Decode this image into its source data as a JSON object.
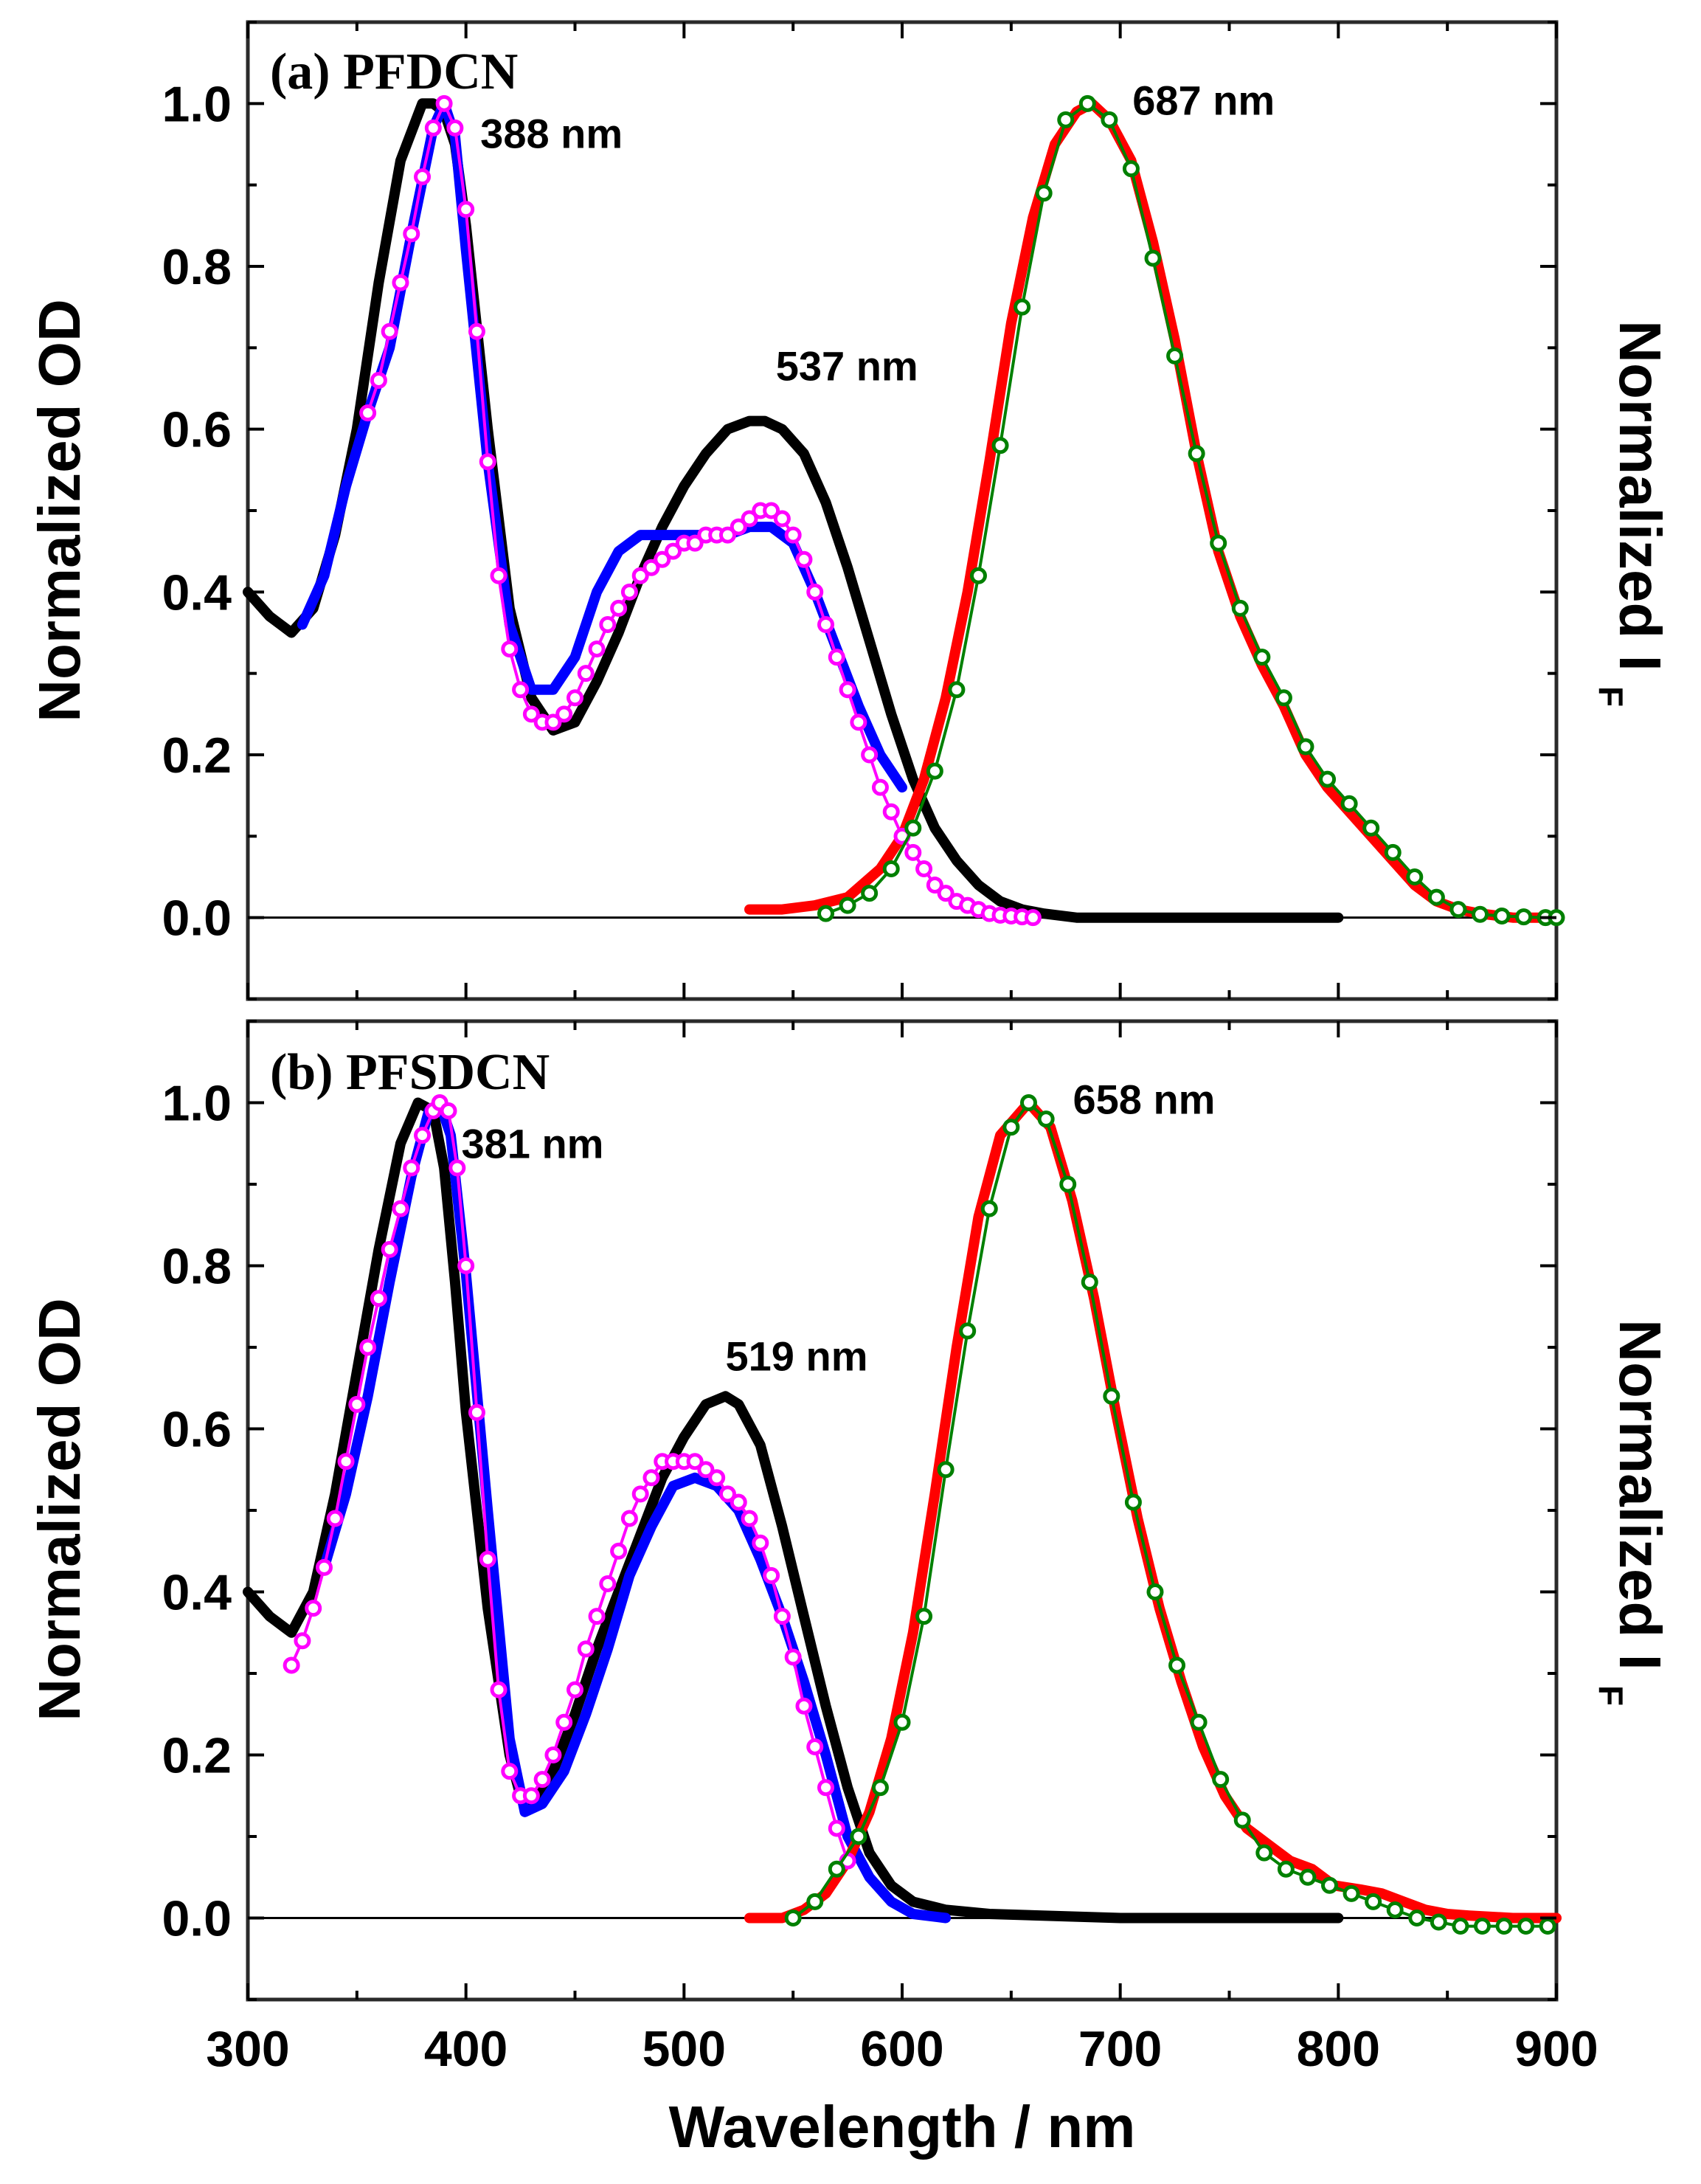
{
  "chart_data": {
    "type": "line",
    "x_axis": {
      "label": "Wavelength / nm",
      "range": [
        300,
        900
      ],
      "ticks": [
        300,
        400,
        500,
        600,
        700,
        800,
        900
      ]
    },
    "panels": [
      {
        "id": "a",
        "title": "(a) PFDCN",
        "ylabel_left": "Normalized OD",
        "ylabel_right": "Normalized I",
        "ylabel_right_sub": "F",
        "ylim": [
          -0.1,
          1.1
        ],
        "yticks": [
          "0.0",
          "0.2",
          "0.4",
          "0.6",
          "0.8",
          "1.0"
        ],
        "peak_labels": [
          {
            "text": "388 nm",
            "x": 388,
            "y": 1.0
          },
          {
            "text": "537 nm",
            "x": 537,
            "y": 0.61
          },
          {
            "text": "687 nm",
            "x": 687,
            "y": 1.0
          }
        ],
        "series": [
          {
            "name": "absorption-black",
            "color": "#000000",
            "style": "line",
            "x": [
              300,
              310,
              320,
              330,
              340,
              350,
              360,
              370,
              380,
              385,
              390,
              395,
              400,
              410,
              420,
              430,
              440,
              450,
              460,
              470,
              480,
              490,
              500,
              510,
              520,
              530,
              537,
              545,
              555,
              565,
              575,
              585,
              595,
              605,
              615,
              625,
              635,
              645,
              655,
              665,
              680,
              700,
              750,
              800
            ],
            "y": [
              0.4,
              0.37,
              0.35,
              0.38,
              0.47,
              0.6,
              0.78,
              0.93,
              1.0,
              1.0,
              0.99,
              0.95,
              0.85,
              0.6,
              0.38,
              0.27,
              0.23,
              0.24,
              0.29,
              0.35,
              0.42,
              0.48,
              0.53,
              0.57,
              0.6,
              0.61,
              0.61,
              0.6,
              0.57,
              0.51,
              0.43,
              0.34,
              0.25,
              0.17,
              0.11,
              0.07,
              0.04,
              0.02,
              0.01,
              0.005,
              0.0,
              0.0,
              0.0,
              0.0
            ]
          },
          {
            "name": "absorption-blue",
            "color": "#0000ff",
            "style": "line",
            "x": [
              325,
              335,
              345,
              355,
              365,
              375,
              385,
              390,
              395,
              400,
              410,
              420,
              430,
              440,
              450,
              460,
              470,
              480,
              490,
              500,
              510,
              520,
              530,
              540,
              550,
              560,
              570,
              580,
              590,
              600
            ],
            "y": [
              0.36,
              0.42,
              0.53,
              0.62,
              0.7,
              0.84,
              0.97,
              1.0,
              0.96,
              0.82,
              0.56,
              0.36,
              0.28,
              0.28,
              0.32,
              0.4,
              0.45,
              0.47,
              0.47,
              0.47,
              0.47,
              0.47,
              0.48,
              0.48,
              0.46,
              0.4,
              0.33,
              0.26,
              0.2,
              0.16
            ]
          },
          {
            "name": "absorption-magenta",
            "color": "#ff00ff",
            "style": "markers",
            "x": [
              355,
              360,
              365,
              370,
              375,
              380,
              385,
              390,
              395,
              400,
              405,
              410,
              415,
              420,
              425,
              430,
              435,
              440,
              445,
              450,
              455,
              460,
              465,
              470,
              475,
              480,
              485,
              490,
              495,
              500,
              505,
              510,
              515,
              520,
              525,
              530,
              535,
              540,
              545,
              550,
              555,
              560,
              565,
              570,
              575,
              580,
              585,
              590,
              595,
              600,
              605,
              610,
              615,
              620,
              625,
              630,
              635,
              640,
              645,
              650,
              655,
              660
            ],
            "y": [
              0.62,
              0.66,
              0.72,
              0.78,
              0.84,
              0.91,
              0.97,
              1.0,
              0.97,
              0.87,
              0.72,
              0.56,
              0.42,
              0.33,
              0.28,
              0.25,
              0.24,
              0.24,
              0.25,
              0.27,
              0.3,
              0.33,
              0.36,
              0.38,
              0.4,
              0.42,
              0.43,
              0.44,
              0.45,
              0.46,
              0.46,
              0.47,
              0.47,
              0.47,
              0.48,
              0.49,
              0.5,
              0.5,
              0.49,
              0.47,
              0.44,
              0.4,
              0.36,
              0.32,
              0.28,
              0.24,
              0.2,
              0.16,
              0.13,
              0.1,
              0.08,
              0.06,
              0.04,
              0.03,
              0.02,
              0.015,
              0.01,
              0.005,
              0.003,
              0.002,
              0.001,
              0.0
            ]
          },
          {
            "name": "emission-red",
            "color": "#ff0000",
            "style": "line",
            "x": [
              530,
              545,
              560,
              575,
              590,
              600,
              610,
              620,
              630,
              640,
              650,
              660,
              670,
              680,
              687,
              695,
              705,
              715,
              725,
              735,
              745,
              755,
              765,
              775,
              785,
              795,
              805,
              815,
              825,
              835,
              845,
              855,
              865,
              880,
              900
            ],
            "y": [
              0.01,
              0.01,
              0.015,
              0.025,
              0.06,
              0.1,
              0.17,
              0.27,
              0.4,
              0.56,
              0.73,
              0.86,
              0.95,
              0.99,
              1.0,
              0.98,
              0.93,
              0.83,
              0.71,
              0.57,
              0.45,
              0.37,
              0.31,
              0.26,
              0.2,
              0.16,
              0.13,
              0.1,
              0.07,
              0.04,
              0.02,
              0.01,
              0.005,
              0.0,
              0.0
            ]
          },
          {
            "name": "emission-green",
            "color": "#008000",
            "style": "markers",
            "x": [
              565,
              575,
              585,
              595,
              605,
              615,
              625,
              635,
              645,
              655,
              665,
              675,
              685,
              695,
              705,
              715,
              725,
              735,
              745,
              755,
              765,
              775,
              785,
              795,
              805,
              815,
              825,
              835,
              845,
              855,
              865,
              875,
              885,
              895,
              900
            ],
            "y": [
              0.005,
              0.015,
              0.03,
              0.06,
              0.11,
              0.18,
              0.28,
              0.42,
              0.58,
              0.75,
              0.89,
              0.98,
              1.0,
              0.98,
              0.92,
              0.81,
              0.69,
              0.57,
              0.46,
              0.38,
              0.32,
              0.27,
              0.21,
              0.17,
              0.14,
              0.11,
              0.08,
              0.05,
              0.025,
              0.01,
              0.004,
              0.002,
              0.001,
              0.0,
              0.0
            ]
          }
        ]
      },
      {
        "id": "b",
        "title": "(b) PFSDCN",
        "ylabel_left": "Normalized OD",
        "ylabel_right": "Normalized I",
        "ylabel_right_sub": "F",
        "ylim": [
          -0.1,
          1.1
        ],
        "yticks": [
          "0.0",
          "0.2",
          "0.4",
          "0.6",
          "0.8",
          "1.0"
        ],
        "peak_labels": [
          {
            "text": "381 nm",
            "x": 381,
            "y": 1.0
          },
          {
            "text": "519 nm",
            "x": 519,
            "y": 0.64
          },
          {
            "text": "658 nm",
            "x": 658,
            "y": 1.0
          }
        ],
        "series": [
          {
            "name": "absorption-black",
            "color": "#000000",
            "style": "line",
            "x": [
              300,
              310,
              320,
              330,
              340,
              350,
              360,
              370,
              378,
              385,
              390,
              395,
              400,
              410,
              420,
              425,
              430,
              440,
              450,
              460,
              470,
              480,
              490,
              500,
              510,
              519,
              525,
              535,
              545,
              555,
              565,
              575,
              585,
              595,
              605,
              620,
              640,
              700,
              800
            ],
            "y": [
              0.4,
              0.37,
              0.35,
              0.4,
              0.52,
              0.67,
              0.82,
              0.95,
              1.0,
              0.99,
              0.92,
              0.78,
              0.62,
              0.38,
              0.2,
              0.15,
              0.14,
              0.18,
              0.25,
              0.33,
              0.4,
              0.47,
              0.54,
              0.59,
              0.63,
              0.64,
              0.63,
              0.58,
              0.48,
              0.37,
              0.26,
              0.16,
              0.08,
              0.04,
              0.02,
              0.01,
              0.005,
              0.0,
              0.0
            ]
          },
          {
            "name": "absorption-blue",
            "color": "#0000ff",
            "style": "line",
            "x": [
              335,
              345,
              355,
              365,
              375,
              383,
              388,
              393,
              400,
              410,
              420,
              427,
              435,
              445,
              455,
              465,
              475,
              485,
              495,
              505,
              515,
              525,
              535,
              545,
              555,
              565,
              575,
              585,
              595,
              605,
              620
            ],
            "y": [
              0.43,
              0.52,
              0.64,
              0.78,
              0.91,
              0.99,
              1.0,
              0.96,
              0.79,
              0.5,
              0.22,
              0.13,
              0.14,
              0.18,
              0.25,
              0.33,
              0.42,
              0.48,
              0.53,
              0.54,
              0.53,
              0.5,
              0.44,
              0.37,
              0.29,
              0.2,
              0.1,
              0.05,
              0.02,
              0.005,
              0.0
            ]
          },
          {
            "name": "absorption-magenta",
            "color": "#ff00ff",
            "style": "markers",
            "x": [
              320,
              325,
              330,
              335,
              340,
              345,
              350,
              355,
              360,
              365,
              370,
              375,
              380,
              385,
              388,
              392,
              396,
              400,
              405,
              410,
              415,
              420,
              425,
              430,
              435,
              440,
              445,
              450,
              455,
              460,
              465,
              470,
              475,
              480,
              485,
              490,
              495,
              500,
              505,
              510,
              515,
              520,
              525,
              530,
              535,
              540,
              545,
              550,
              555,
              560,
              565,
              570,
              575
            ],
            "y": [
              0.31,
              0.34,
              0.38,
              0.43,
              0.49,
              0.56,
              0.63,
              0.7,
              0.76,
              0.82,
              0.87,
              0.92,
              0.96,
              0.99,
              1.0,
              0.99,
              0.92,
              0.8,
              0.62,
              0.44,
              0.28,
              0.18,
              0.15,
              0.15,
              0.17,
              0.2,
              0.24,
              0.28,
              0.33,
              0.37,
              0.41,
              0.45,
              0.49,
              0.52,
              0.54,
              0.56,
              0.56,
              0.56,
              0.56,
              0.55,
              0.54,
              0.52,
              0.51,
              0.49,
              0.46,
              0.42,
              0.37,
              0.32,
              0.26,
              0.21,
              0.16,
              0.11,
              0.07
            ]
          },
          {
            "name": "emission-red",
            "color": "#ff0000",
            "style": "line",
            "x": [
              530,
              545,
              555,
              565,
              575,
              585,
              595,
              605,
              615,
              625,
              635,
              645,
              658,
              668,
              678,
              688,
              698,
              708,
              718,
              728,
              738,
              748,
              758,
              768,
              778,
              788,
              798,
              810,
              820,
              830,
              840,
              850,
              860,
              880,
              900
            ],
            "y": [
              0.0,
              0.0,
              0.01,
              0.03,
              0.07,
              0.13,
              0.22,
              0.35,
              0.52,
              0.7,
              0.86,
              0.96,
              1.0,
              0.97,
              0.88,
              0.76,
              0.62,
              0.49,
              0.38,
              0.29,
              0.21,
              0.15,
              0.11,
              0.09,
              0.07,
              0.06,
              0.04,
              0.035,
              0.03,
              0.02,
              0.01,
              0.005,
              0.003,
              0.0,
              0.0
            ]
          },
          {
            "name": "emission-green",
            "color": "#008000",
            "style": "markers",
            "x": [
              550,
              560,
              570,
              580,
              590,
              600,
              610,
              620,
              630,
              640,
              650,
              658,
              666,
              676,
              686,
              696,
              706,
              716,
              726,
              736,
              746,
              756,
              766,
              776,
              786,
              796,
              806,
              816,
              826,
              836,
              846,
              856,
              866,
              876,
              886,
              896
            ],
            "y": [
              0.0,
              0.02,
              0.06,
              0.1,
              0.16,
              0.24,
              0.37,
              0.55,
              0.72,
              0.87,
              0.97,
              1.0,
              0.98,
              0.9,
              0.78,
              0.64,
              0.51,
              0.4,
              0.31,
              0.24,
              0.17,
              0.12,
              0.08,
              0.06,
              0.05,
              0.04,
              0.03,
              0.02,
              0.01,
              0.0,
              -0.005,
              -0.01,
              -0.01,
              -0.01,
              -0.01,
              -0.01
            ]
          }
        ]
      }
    ]
  }
}
